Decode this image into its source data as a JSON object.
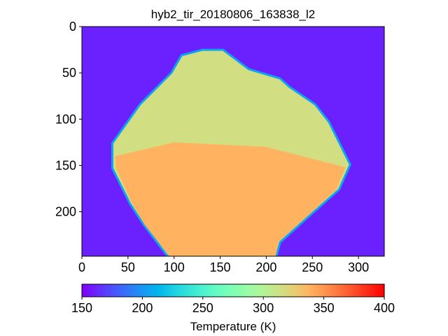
{
  "chart_data": {
    "type": "image",
    "title": "hyb2_tir_20180806_163838_l2",
    "colormap": "rainbow",
    "xlim": [
      0,
      328
    ],
    "ylim": [
      248,
      0
    ],
    "xticks": [
      0,
      50,
      100,
      150,
      200,
      250,
      300
    ],
    "yticks": [
      0,
      50,
      100,
      150,
      200
    ],
    "background": 160,
    "regions": [
      {
        "value": 315,
        "x": [
          131,
          153,
          181,
          215,
          225,
          253,
          268,
          291,
          279,
          245,
          215,
          211,
          93,
          67,
          52,
          33,
          33,
          63,
          97,
          108
        ],
        "y": [
          25,
          25,
          46,
          56,
          65,
          84,
          103,
          149,
          176,
          206,
          233,
          248,
          248,
          214,
          191,
          153,
          126,
          84,
          50,
          31
        ]
      },
      {
        "value": 338,
        "x": [
          36,
          100,
          200,
          286,
          276,
          243,
          213,
          210,
          95,
          68,
          54,
          37
        ],
        "y": [
          140,
          125,
          130,
          152,
          176,
          206,
          233,
          248,
          248,
          214,
          190,
          153
        ]
      }
    ],
    "colorbar": {
      "label": "Temperature (K)",
      "lim": [
        150,
        400
      ],
      "ticks": [
        150,
        200,
        250,
        300,
        350,
        400
      ]
    }
  }
}
